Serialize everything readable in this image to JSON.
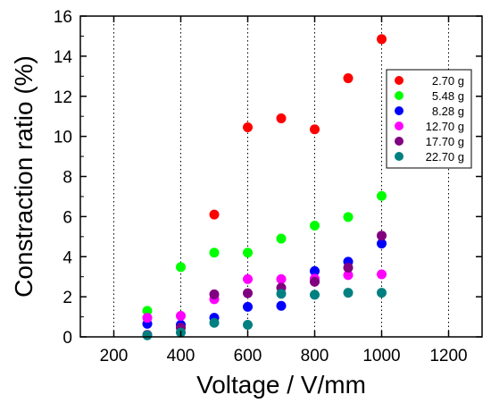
{
  "chart_data": {
    "type": "scatter",
    "title": "",
    "xlabel": "Voltage / V/mm",
    "ylabel": "Constraction ratio (%)",
    "xlim": [
      100,
      1300
    ],
    "ylim": [
      0,
      16
    ],
    "x_ticks": [
      200,
      400,
      600,
      800,
      1000,
      1200
    ],
    "y_ticks": [
      0,
      2,
      4,
      6,
      8,
      10,
      12,
      14,
      16
    ],
    "grid": "vertical dotted lines at x ticks",
    "legend": {
      "position": "top-right"
    },
    "series": [
      {
        "name": "2.70 g",
        "color": "#ff0000",
        "points": [
          [
            500,
            6.1
          ],
          [
            600,
            10.45
          ],
          [
            700,
            10.9
          ],
          [
            800,
            10.35
          ],
          [
            900,
            12.9
          ],
          [
            1000,
            14.85
          ]
        ]
      },
      {
        "name": "5.48 g",
        "color": "#00ff00",
        "points": [
          [
            300,
            1.3
          ],
          [
            400,
            3.48
          ],
          [
            500,
            4.2
          ],
          [
            600,
            4.2
          ],
          [
            700,
            4.9
          ],
          [
            800,
            5.55
          ],
          [
            900,
            5.98
          ],
          [
            1000,
            7.03
          ]
        ]
      },
      {
        "name": "8.28 g",
        "color": "#0000ff",
        "points": [
          [
            300,
            0.65
          ],
          [
            400,
            0.6
          ],
          [
            500,
            0.95
          ],
          [
            600,
            1.5
          ],
          [
            700,
            1.55
          ],
          [
            800,
            3.28
          ],
          [
            900,
            3.75
          ],
          [
            1000,
            4.65
          ]
        ]
      },
      {
        "name": "12.70 g",
        "color": "#ff00ff",
        "points": [
          [
            300,
            0.95
          ],
          [
            400,
            1.05
          ],
          [
            500,
            1.88
          ],
          [
            600,
            2.88
          ],
          [
            700,
            2.88
          ],
          [
            800,
            2.9
          ],
          [
            900,
            3.08
          ],
          [
            1000,
            3.12
          ]
        ]
      },
      {
        "name": "17.70 g",
        "color": "#800080",
        "points": [
          [
            300,
            0.1
          ],
          [
            400,
            0.45
          ],
          [
            500,
            2.12
          ],
          [
            600,
            2.18
          ],
          [
            700,
            2.45
          ],
          [
            800,
            2.75
          ],
          [
            900,
            3.45
          ],
          [
            1000,
            5.05
          ]
        ]
      },
      {
        "name": "22.70 g",
        "color": "#008080",
        "points": [
          [
            300,
            0.08
          ],
          [
            400,
            0.22
          ],
          [
            500,
            0.7
          ],
          [
            600,
            0.6
          ],
          [
            700,
            2.15
          ],
          [
            800,
            2.1
          ],
          [
            900,
            2.2
          ],
          [
            1000,
            2.2
          ]
        ]
      }
    ]
  }
}
